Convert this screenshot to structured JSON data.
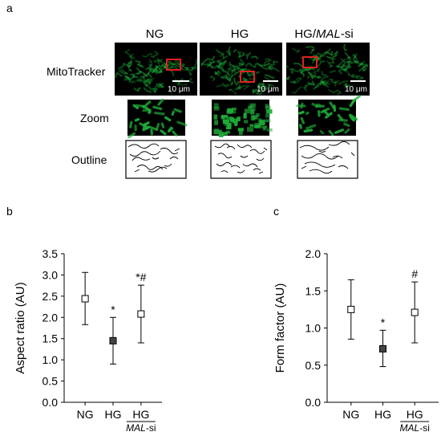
{
  "panel_a": {
    "label": "a",
    "columns": [
      {
        "label": "NG",
        "scale_bar": "10 μm"
      },
      {
        "label": "HG",
        "scale_bar": "10 μm"
      },
      {
        "label_prefix": "HG/",
        "label_italic": "MAL",
        "label_suffix": "-si",
        "scale_bar": "10 μm"
      }
    ],
    "rows": [
      "MitoTracker",
      "Zoom",
      "Outline"
    ],
    "colors": {
      "mito_green": "#1fae3a",
      "highlight_box": "#e02020",
      "background": "#000000"
    }
  },
  "chart_data": [
    {
      "panel_label": "b",
      "type": "scatter",
      "categories": [
        "NG",
        "HG",
        "HG"
      ],
      "category_sublabel": {
        "italic": "MAL",
        "suffix": "-si"
      },
      "ylabel": "Aspect ratio (AU)",
      "ylim": [
        0,
        3.5
      ],
      "yticks": [
        "0.0",
        "0.5",
        "1.0",
        "1.5",
        "2.0",
        "2.5",
        "3.0",
        "3.5"
      ],
      "yticks_values": [
        0,
        0.5,
        1.0,
        1.5,
        2.0,
        2.5,
        3.0,
        3.5
      ],
      "points": [
        {
          "mean": 2.44,
          "low": 1.83,
          "high": 3.06,
          "filled": false,
          "annotation": ""
        },
        {
          "mean": 1.45,
          "low": 0.9,
          "high": 2.0,
          "filled": true,
          "annotation": "*"
        },
        {
          "mean": 2.08,
          "low": 1.4,
          "high": 2.76,
          "filled": false,
          "annotation": "*#"
        }
      ]
    },
    {
      "panel_label": "c",
      "type": "scatter",
      "categories": [
        "NG",
        "HG",
        "HG"
      ],
      "category_sublabel": {
        "italic": "MAL",
        "suffix": "-si"
      },
      "ylabel": "Form factor (AU)",
      "ylim": [
        0,
        2.0
      ],
      "yticks": [
        "0.0",
        "0.5",
        "1.0",
        "1.5",
        "2.0"
      ],
      "yticks_values": [
        0,
        0.5,
        1.0,
        1.5,
        2.0
      ],
      "points": [
        {
          "mean": 1.25,
          "low": 0.85,
          "high": 1.65,
          "filled": false,
          "annotation": ""
        },
        {
          "mean": 0.72,
          "low": 0.48,
          "high": 0.97,
          "filled": true,
          "annotation": "*"
        },
        {
          "mean": 1.21,
          "low": 0.8,
          "high": 1.62,
          "filled": false,
          "annotation": "#"
        }
      ]
    }
  ]
}
